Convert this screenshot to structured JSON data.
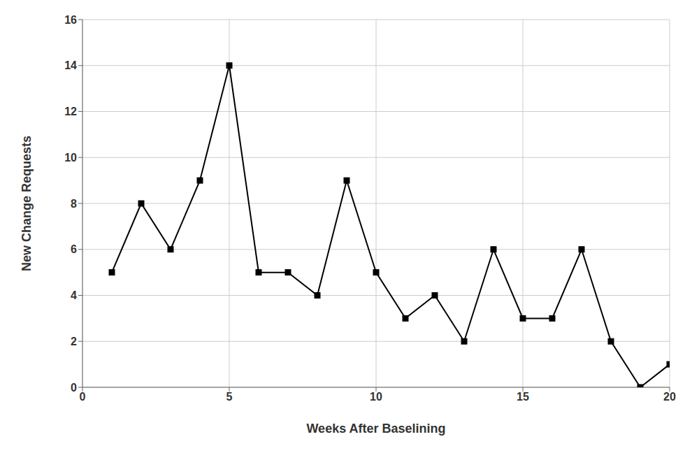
{
  "chart_data": {
    "type": "line",
    "x": [
      1,
      2,
      3,
      4,
      5,
      6,
      7,
      8,
      9,
      10,
      11,
      12,
      13,
      14,
      15,
      16,
      17,
      18,
      19,
      20
    ],
    "values": [
      5,
      8,
      6,
      9,
      14,
      5,
      5,
      4,
      9,
      5,
      3,
      4,
      2,
      6,
      3,
      3,
      6,
      2,
      0,
      1
    ],
    "xlabel": "Weeks After Baselining",
    "ylabel": "New Change Requests",
    "xlim": [
      0,
      20
    ],
    "ylim": [
      0,
      16
    ],
    "xticks": [
      0,
      5,
      10,
      15,
      20
    ],
    "yticks": [
      0,
      2,
      4,
      6,
      8,
      10,
      12,
      14,
      16
    ],
    "color": "#000000",
    "marker": "square",
    "grid": true
  }
}
